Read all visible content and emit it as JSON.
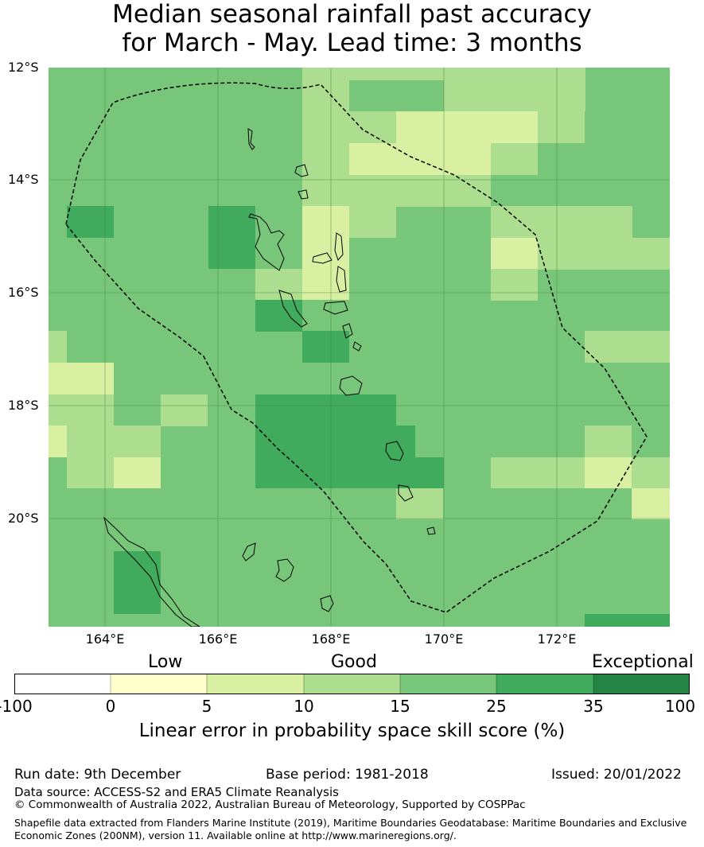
{
  "title_line1": "Median seasonal rainfall past accuracy",
  "title_line2": "for March - May. Lead time: 3 months",
  "lat_labels": [
    "12°S",
    "14°S",
    "16°S",
    "18°S",
    "20°S"
  ],
  "lon_labels": [
    "164°E",
    "166°E",
    "168°E",
    "170°E",
    "172°E"
  ],
  "categories": [
    "Low",
    "Good",
    "Exceptional"
  ],
  "colorbar": {
    "ticks": [
      "-100",
      "0",
      "5",
      "10",
      "15",
      "25",
      "35",
      "100"
    ],
    "colors": [
      "#ffffff",
      "#ffffcc",
      "#d9f0a3",
      "#addd8e",
      "#78c679",
      "#41ab5d",
      "#238443"
    ],
    "label": "Linear error in probability space skill score (%)"
  },
  "footer": {
    "run_date": "Run date: 9th December",
    "base_period": "Base period: 1981-2018",
    "issued": "Issued: 20/01/2022",
    "data_source": "Data source: ACCESS-S2 and ERA5 Climate Reanalysis",
    "copyright": "© Commonwealth of Australia 2022, Australian Bureau of Meteorology, Supported by COSPPac",
    "shapefile": "Shapefile data extracted from Flanders Marine Institute (2019), Maritime Boundaries Geodatabase: Maritime Boundaries and Exclusive Economic Zones (200NM), version 11. Available online at http://www.marineregions.org/."
  },
  "map_colors": {
    "low": "#ffffcc",
    "good_5_10": "#d9f0a3",
    "good_10_15": "#addd8e",
    "good_15_25": "#78c679",
    "good_25_35": "#41ab5d",
    "exceptional": "#238443"
  }
}
